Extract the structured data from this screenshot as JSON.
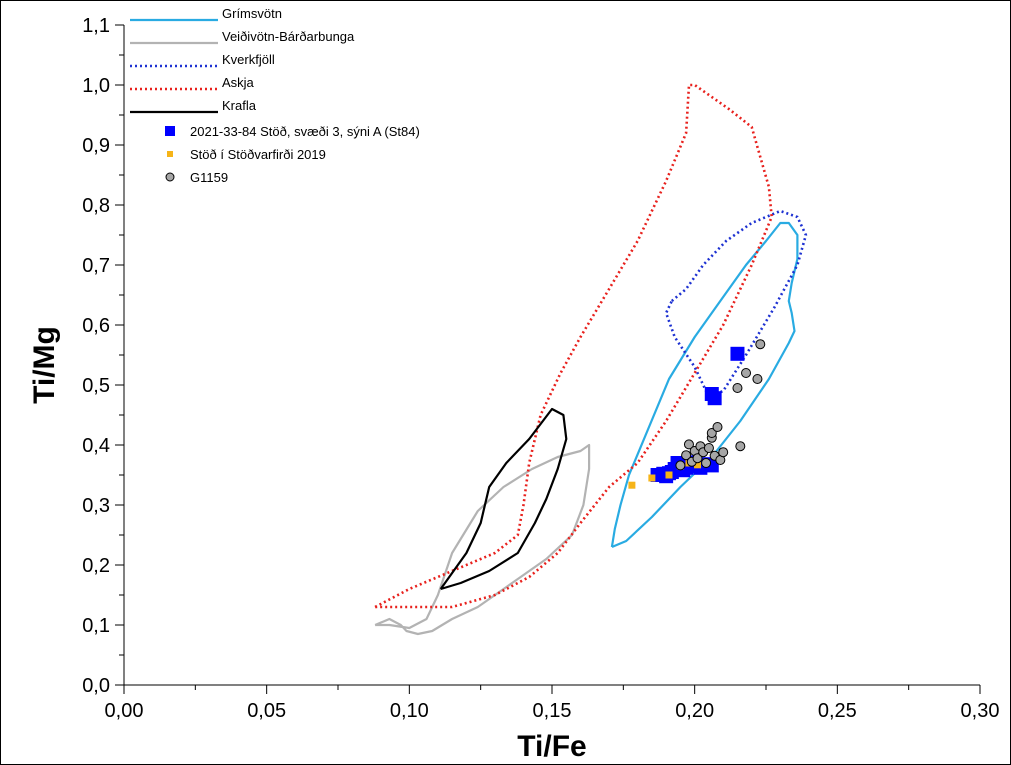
{
  "chart_data": {
    "type": "scatter",
    "xlabel": "Ti/Fe",
    "ylabel": "Ti/Mg",
    "xlim": [
      0,
      0.3
    ],
    "ylim": [
      0,
      1.1
    ],
    "x_ticks": [
      {
        "value": 0.0,
        "label": "0,00"
      },
      {
        "value": 0.05,
        "label": "0,05"
      },
      {
        "value": 0.1,
        "label": "0,10"
      },
      {
        "value": 0.15,
        "label": "0,15"
      },
      {
        "value": 0.2,
        "label": "0,20"
      },
      {
        "value": 0.25,
        "label": "0,25"
      },
      {
        "value": 0.3,
        "label": "0,30"
      }
    ],
    "y_ticks": [
      {
        "value": 0.0,
        "label": "0,0"
      },
      {
        "value": 0.1,
        "label": "0,1"
      },
      {
        "value": 0.2,
        "label": "0,2"
      },
      {
        "value": 0.3,
        "label": "0,3"
      },
      {
        "value": 0.4,
        "label": "0,4"
      },
      {
        "value": 0.5,
        "label": "0,5"
      },
      {
        "value": 0.6,
        "label": "0,6"
      },
      {
        "value": 0.7,
        "label": "0,7"
      },
      {
        "value": 0.8,
        "label": "0,8"
      },
      {
        "value": 0.9,
        "label": "0,9"
      },
      {
        "value": 1.0,
        "label": "1,0"
      },
      {
        "value": 1.1,
        "label": "1,1"
      }
    ],
    "grid": false,
    "legend_position": "top-left",
    "fields": [
      {
        "name": "Grímsvötn",
        "color": "#29abe2",
        "style": "solid",
        "points": [
          [
            0.171,
            0.23
          ],
          [
            0.176,
            0.24
          ],
          [
            0.185,
            0.28
          ],
          [
            0.195,
            0.33
          ],
          [
            0.206,
            0.38
          ],
          [
            0.216,
            0.44
          ],
          [
            0.226,
            0.51
          ],
          [
            0.233,
            0.57
          ],
          [
            0.235,
            0.59
          ],
          [
            0.234,
            0.62
          ],
          [
            0.233,
            0.64
          ],
          [
            0.234,
            0.67
          ],
          [
            0.236,
            0.71
          ],
          [
            0.236,
            0.75
          ],
          [
            0.233,
            0.77
          ],
          [
            0.23,
            0.77
          ],
          [
            0.225,
            0.74
          ],
          [
            0.218,
            0.7
          ],
          [
            0.209,
            0.64
          ],
          [
            0.2,
            0.58
          ],
          [
            0.191,
            0.51
          ],
          [
            0.184,
            0.43
          ],
          [
            0.177,
            0.35
          ],
          [
            0.174,
            0.3
          ],
          [
            0.172,
            0.26
          ],
          [
            0.171,
            0.23
          ]
        ]
      },
      {
        "name": "Veiðivötn-Bárðarbunga",
        "color": "#b3b3b3",
        "style": "solid",
        "points": [
          [
            0.088,
            0.1
          ],
          [
            0.093,
            0.11
          ],
          [
            0.097,
            0.1
          ],
          [
            0.099,
            0.09
          ],
          [
            0.103,
            0.085
          ],
          [
            0.108,
            0.09
          ],
          [
            0.115,
            0.11
          ],
          [
            0.124,
            0.13
          ],
          [
            0.136,
            0.17
          ],
          [
            0.148,
            0.21
          ],
          [
            0.157,
            0.25
          ],
          [
            0.161,
            0.3
          ],
          [
            0.163,
            0.36
          ],
          [
            0.163,
            0.4
          ],
          [
            0.16,
            0.39
          ],
          [
            0.152,
            0.38
          ],
          [
            0.143,
            0.36
          ],
          [
            0.133,
            0.33
          ],
          [
            0.124,
            0.29
          ],
          [
            0.115,
            0.22
          ],
          [
            0.11,
            0.15
          ],
          [
            0.106,
            0.11
          ],
          [
            0.1,
            0.095
          ],
          [
            0.093,
            0.1
          ],
          [
            0.088,
            0.1
          ]
        ]
      },
      {
        "name": "Kverkfjöll",
        "color": "#1e32d2",
        "style": "dotted",
        "points": [
          [
            0.192,
            0.64
          ],
          [
            0.197,
            0.66
          ],
          [
            0.203,
            0.7
          ],
          [
            0.211,
            0.74
          ],
          [
            0.22,
            0.77
          ],
          [
            0.23,
            0.79
          ],
          [
            0.236,
            0.78
          ],
          [
            0.239,
            0.75
          ],
          [
            0.236,
            0.7
          ],
          [
            0.228,
            0.63
          ],
          [
            0.218,
            0.55
          ],
          [
            0.21,
            0.49
          ],
          [
            0.205,
            0.48
          ],
          [
            0.2,
            0.53
          ],
          [
            0.193,
            0.58
          ],
          [
            0.19,
            0.62
          ],
          [
            0.192,
            0.64
          ]
        ]
      },
      {
        "name": "Askja",
        "color": "#e8211d",
        "style": "dotted",
        "points": [
          [
            0.088,
            0.13
          ],
          [
            0.1,
            0.16
          ],
          [
            0.115,
            0.19
          ],
          [
            0.13,
            0.22
          ],
          [
            0.138,
            0.25
          ],
          [
            0.14,
            0.3
          ],
          [
            0.142,
            0.37
          ],
          [
            0.146,
            0.45
          ],
          [
            0.153,
            0.52
          ],
          [
            0.16,
            0.58
          ],
          [
            0.17,
            0.66
          ],
          [
            0.18,
            0.74
          ],
          [
            0.19,
            0.84
          ],
          [
            0.197,
            0.92
          ],
          [
            0.198,
            1.0
          ],
          [
            0.2,
            1.0
          ],
          [
            0.212,
            0.96
          ],
          [
            0.22,
            0.93
          ],
          [
            0.226,
            0.83
          ],
          [
            0.227,
            0.78
          ],
          [
            0.22,
            0.7
          ],
          [
            0.21,
            0.6
          ],
          [
            0.2,
            0.52
          ],
          [
            0.19,
            0.44
          ],
          [
            0.18,
            0.37
          ],
          [
            0.17,
            0.33
          ],
          [
            0.16,
            0.27
          ],
          [
            0.152,
            0.22
          ],
          [
            0.142,
            0.18
          ],
          [
            0.13,
            0.15
          ],
          [
            0.115,
            0.13
          ],
          [
            0.1,
            0.13
          ],
          [
            0.088,
            0.13
          ]
        ]
      },
      {
        "name": "Krafla",
        "color": "#000000",
        "style": "solid",
        "points": [
          [
            0.111,
            0.16
          ],
          [
            0.12,
            0.22
          ],
          [
            0.125,
            0.27
          ],
          [
            0.126,
            0.29
          ],
          [
            0.128,
            0.33
          ],
          [
            0.134,
            0.37
          ],
          [
            0.142,
            0.41
          ],
          [
            0.15,
            0.46
          ],
          [
            0.154,
            0.45
          ],
          [
            0.155,
            0.41
          ],
          [
            0.152,
            0.36
          ],
          [
            0.148,
            0.31
          ],
          [
            0.144,
            0.27
          ],
          [
            0.138,
            0.22
          ],
          [
            0.128,
            0.19
          ],
          [
            0.118,
            0.17
          ],
          [
            0.111,
            0.16
          ]
        ]
      }
    ],
    "series": [
      {
        "name": "2021-33-84 Stöð, svæði 3, sýni A (St84)",
        "color": "#0000ff",
        "marker": "square-large",
        "points": [
          [
            0.187,
            0.35
          ],
          [
            0.189,
            0.352
          ],
          [
            0.19,
            0.348
          ],
          [
            0.191,
            0.353
          ],
          [
            0.192,
            0.355
          ],
          [
            0.193,
            0.36
          ],
          [
            0.194,
            0.37
          ],
          [
            0.195,
            0.365
          ],
          [
            0.196,
            0.358
          ],
          [
            0.197,
            0.362
          ],
          [
            0.198,
            0.368
          ],
          [
            0.199,
            0.371
          ],
          [
            0.2,
            0.365
          ],
          [
            0.202,
            0.362
          ],
          [
            0.204,
            0.368
          ],
          [
            0.206,
            0.366
          ],
          [
            0.206,
            0.485
          ],
          [
            0.207,
            0.478
          ],
          [
            0.215,
            0.552
          ]
        ]
      },
      {
        "name": "Stöð í Stöðvarfirði 2019",
        "color": "#f6b418",
        "marker": "square-small",
        "points": [
          [
            0.178,
            0.333
          ],
          [
            0.185,
            0.345
          ],
          [
            0.191,
            0.35
          ],
          [
            0.195,
            0.365
          ],
          [
            0.198,
            0.37
          ],
          [
            0.2,
            0.372
          ],
          [
            0.201,
            0.367
          ]
        ]
      },
      {
        "name": "G1159",
        "color": "#a6a6a6",
        "marker": "circle",
        "points": [
          [
            0.195,
            0.366
          ],
          [
            0.197,
            0.383
          ],
          [
            0.198,
            0.401
          ],
          [
            0.199,
            0.372
          ],
          [
            0.2,
            0.39
          ],
          [
            0.201,
            0.378
          ],
          [
            0.202,
            0.398
          ],
          [
            0.203,
            0.388
          ],
          [
            0.204,
            0.37
          ],
          [
            0.205,
            0.395
          ],
          [
            0.206,
            0.412
          ],
          [
            0.206,
            0.42
          ],
          [
            0.207,
            0.382
          ],
          [
            0.208,
            0.43
          ],
          [
            0.209,
            0.375
          ],
          [
            0.21,
            0.388
          ],
          [
            0.215,
            0.495
          ],
          [
            0.216,
            0.398
          ],
          [
            0.218,
            0.52
          ],
          [
            0.222,
            0.51
          ],
          [
            0.223,
            0.568
          ]
        ]
      }
    ]
  }
}
